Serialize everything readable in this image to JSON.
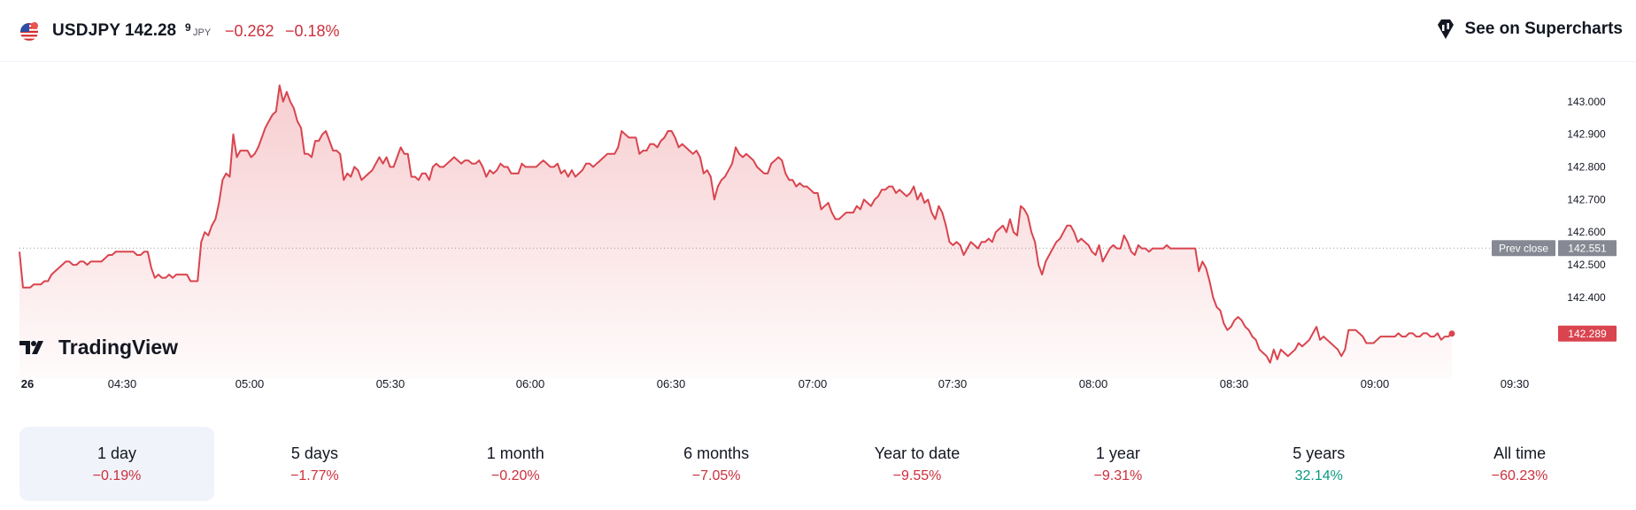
{
  "header": {
    "symbol": "USDJPY",
    "price": "142.28",
    "price_sup": "9",
    "currency": "JPY",
    "change": "−0.262",
    "change_pct": "−0.18%",
    "supercharts_label": "See on Supercharts",
    "flag_icon": "us-flag-icon",
    "accent_negative": "#cc2f3c",
    "accent_positive": "#089981"
  },
  "chart_data": {
    "type": "area",
    "title": "",
    "xlabel": "",
    "ylabel": "",
    "x_ticks": [
      "26",
      "04:30",
      "05:00",
      "05:30",
      "06:00",
      "06:30",
      "07:00",
      "07:30",
      "08:00",
      "08:30",
      "09:00",
      "09:30"
    ],
    "y_ticks": [
      "143.000",
      "142.900",
      "142.800",
      "142.700",
      "142.600",
      "142.500",
      "142.400"
    ],
    "ylim": [
      142.15,
      143.1
    ],
    "prev_close": {
      "label": "Prev close",
      "value": 142.551,
      "value_text": "142.551"
    },
    "last": {
      "value": 142.289,
      "value_text": "142.289"
    },
    "line_color": "#d9444e",
    "grid": false,
    "series": [
      {
        "values": [
          142.54,
          142.43,
          142.43,
          142.43,
          142.44,
          142.44,
          142.44,
          142.45,
          142.45,
          142.47,
          142.48,
          142.49,
          142.5,
          142.51,
          142.51,
          142.5,
          142.5,
          142.51,
          142.51,
          142.5,
          142.51,
          142.51,
          142.51,
          142.51,
          142.52,
          142.53,
          142.53,
          142.54,
          142.54,
          142.54,
          142.54,
          142.54,
          142.54,
          142.53,
          142.53,
          142.54,
          142.54,
          142.49,
          142.46,
          142.47,
          142.46,
          142.46,
          142.47,
          142.46,
          142.47,
          142.47,
          142.47,
          142.47,
          142.45,
          142.45,
          142.45,
          142.57,
          142.6,
          142.59,
          142.62,
          142.64,
          142.69,
          142.76,
          142.78,
          142.77,
          142.9,
          142.83,
          142.85,
          142.85,
          142.85,
          142.83,
          142.84,
          142.86,
          142.89,
          142.92,
          142.94,
          142.96,
          142.97,
          143.05,
          143.0,
          143.03,
          143.0,
          142.98,
          142.94,
          142.92,
          142.84,
          142.84,
          142.83,
          142.88,
          142.88,
          142.9,
          142.91,
          142.88,
          142.85,
          142.85,
          142.84,
          142.76,
          142.78,
          142.77,
          142.8,
          142.79,
          142.76,
          142.77,
          142.78,
          142.79,
          142.81,
          142.83,
          142.81,
          142.83,
          142.8,
          142.8,
          142.83,
          142.86,
          142.84,
          142.84,
          142.77,
          142.77,
          142.76,
          142.78,
          142.78,
          142.76,
          142.8,
          142.81,
          142.8,
          142.8,
          142.81,
          142.82,
          142.83,
          142.82,
          142.81,
          142.82,
          142.82,
          142.81,
          142.81,
          142.82,
          142.8,
          142.77,
          142.79,
          142.78,
          142.79,
          142.81,
          142.8,
          142.8,
          142.78,
          142.78,
          142.78,
          142.81,
          142.8,
          142.8,
          142.8,
          142.8,
          142.81,
          142.82,
          142.81,
          142.8,
          142.8,
          142.81,
          142.78,
          142.79,
          142.77,
          142.79,
          142.77,
          142.78,
          142.79,
          142.81,
          142.81,
          142.8,
          142.81,
          142.82,
          142.83,
          142.84,
          142.84,
          142.84,
          142.86,
          142.91,
          142.9,
          142.89,
          142.89,
          142.89,
          142.84,
          142.85,
          142.85,
          142.87,
          142.87,
          142.86,
          142.88,
          142.89,
          142.91,
          142.91,
          142.89,
          142.86,
          142.87,
          142.86,
          142.85,
          142.84,
          142.85,
          142.83,
          142.78,
          142.79,
          142.77,
          142.7,
          142.74,
          142.76,
          142.77,
          142.79,
          142.81,
          142.86,
          142.84,
          142.83,
          142.84,
          142.83,
          142.82,
          142.8,
          142.79,
          142.78,
          142.78,
          142.81,
          142.82,
          142.83,
          142.82,
          142.78,
          142.76,
          142.76,
          142.74,
          142.75,
          142.74,
          142.74,
          142.73,
          142.72,
          142.72,
          142.67,
          142.68,
          142.69,
          142.66,
          142.64,
          142.64,
          142.65,
          142.66,
          142.66,
          142.66,
          142.68,
          142.67,
          142.7,
          142.69,
          142.68,
          142.7,
          142.71,
          142.73,
          142.73,
          142.74,
          142.74,
          142.72,
          142.73,
          142.72,
          142.71,
          142.72,
          142.74,
          142.7,
          142.72,
          142.69,
          142.7,
          142.66,
          142.64,
          142.68,
          142.66,
          142.62,
          142.57,
          142.56,
          142.57,
          142.56,
          142.53,
          142.55,
          142.57,
          142.56,
          142.55,
          142.57,
          142.57,
          142.58,
          142.57,
          142.6,
          142.61,
          142.62,
          142.6,
          142.64,
          142.6,
          142.59,
          142.68,
          142.67,
          142.65,
          142.6,
          142.57,
          142.5,
          142.47,
          142.51,
          142.53,
          142.55,
          142.57,
          142.58,
          142.6,
          142.62,
          142.62,
          142.6,
          142.57,
          142.58,
          142.57,
          142.56,
          142.54,
          142.53,
          142.56,
          142.51,
          142.53,
          142.55,
          142.56,
          142.55,
          142.55,
          142.59,
          142.57,
          142.54,
          142.53,
          142.56,
          142.55,
          142.55,
          142.54,
          142.55,
          142.55,
          142.55,
          142.55,
          142.56,
          142.55,
          142.55,
          142.55,
          142.55,
          142.55,
          142.55,
          142.55,
          142.55,
          142.48,
          142.51,
          142.49,
          142.45,
          142.4,
          142.37,
          142.36,
          142.32,
          142.3,
          142.31,
          142.33,
          142.34,
          142.33,
          142.31,
          142.3,
          142.28,
          142.27,
          142.24,
          142.23,
          142.22,
          142.2,
          142.24,
          142.21,
          142.24,
          142.23,
          142.22,
          142.23,
          142.24,
          142.26,
          142.25,
          142.26,
          142.27,
          142.29,
          142.31,
          142.27,
          142.28,
          142.27,
          142.26,
          142.25,
          142.24,
          142.22,
          142.24,
          142.3,
          142.3,
          142.3,
          142.29,
          142.28,
          142.26,
          142.26,
          142.26,
          142.27,
          142.28,
          142.28,
          142.28,
          142.28,
          142.28,
          142.29,
          142.28,
          142.28,
          142.29,
          142.29,
          142.28,
          142.28,
          142.29,
          142.29,
          142.28,
          142.28,
          142.29,
          142.27,
          142.28,
          142.28,
          142.29
        ]
      }
    ]
  },
  "periods": [
    {
      "label": "1 day",
      "value": "−0.19%",
      "sign": "neg",
      "active": true
    },
    {
      "label": "5 days",
      "value": "−1.77%",
      "sign": "neg",
      "active": false
    },
    {
      "label": "1 month",
      "value": "−0.20%",
      "sign": "neg",
      "active": false
    },
    {
      "label": "6 months",
      "value": "−7.05%",
      "sign": "neg",
      "active": false
    },
    {
      "label": "Year to date",
      "value": "−9.55%",
      "sign": "neg",
      "active": false
    },
    {
      "label": "1 year",
      "value": "−9.31%",
      "sign": "neg",
      "active": false
    },
    {
      "label": "5 years",
      "value": "32.14%",
      "sign": "pos",
      "active": false
    },
    {
      "label": "All time",
      "value": "−60.23%",
      "sign": "neg",
      "active": false
    }
  ],
  "brand": {
    "name": "TradingView",
    "logo_icon": "tradingview-logo-icon"
  }
}
